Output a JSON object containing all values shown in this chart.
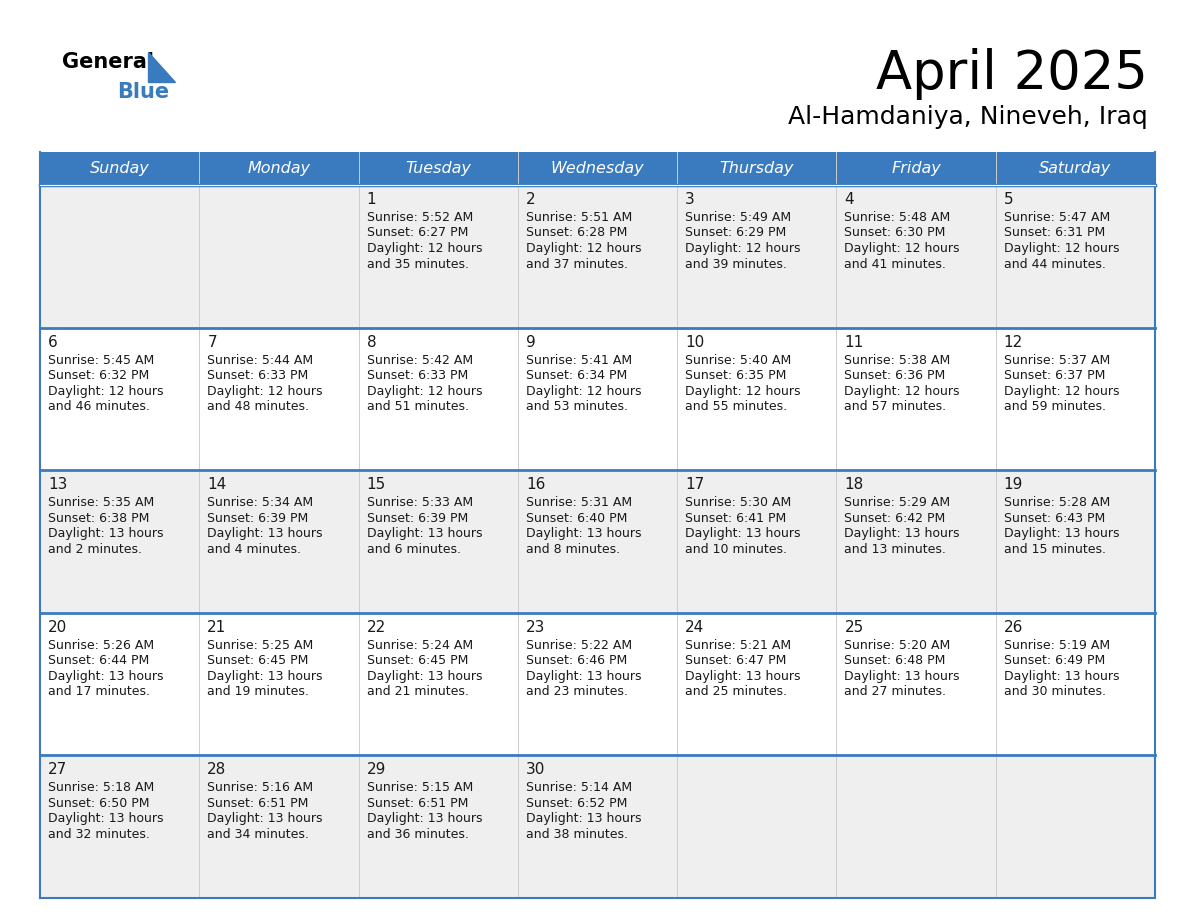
{
  "title": "April 2025",
  "subtitle": "Al-Hamdaniya, Nineveh, Iraq",
  "days_of_week": [
    "Sunday",
    "Monday",
    "Tuesday",
    "Wednesday",
    "Thursday",
    "Friday",
    "Saturday"
  ],
  "header_bg_color": "#3a7bbf",
  "header_text_color": "#ffffff",
  "row_bg_colors": [
    "#efefef",
    "#ffffff",
    "#efefef",
    "#ffffff",
    "#efefef"
  ],
  "border_color": "#3a7bbf",
  "sep_line_color": "#3a7bbf",
  "col_line_color": "#cccccc",
  "title_color": "#000000",
  "subtitle_color": "#000000",
  "day_num_color": "#1a1a1a",
  "info_text_color": "#1a1a1a",
  "calendar_data": [
    [
      null,
      null,
      {
        "day": 1,
        "sunrise": "5:52 AM",
        "sunset": "6:27 PM",
        "daylight_line1": "Daylight: 12 hours",
        "daylight_line2": "and 35 minutes."
      },
      {
        "day": 2,
        "sunrise": "5:51 AM",
        "sunset": "6:28 PM",
        "daylight_line1": "Daylight: 12 hours",
        "daylight_line2": "and 37 minutes."
      },
      {
        "day": 3,
        "sunrise": "5:49 AM",
        "sunset": "6:29 PM",
        "daylight_line1": "Daylight: 12 hours",
        "daylight_line2": "and 39 minutes."
      },
      {
        "day": 4,
        "sunrise": "5:48 AM",
        "sunset": "6:30 PM",
        "daylight_line1": "Daylight: 12 hours",
        "daylight_line2": "and 41 minutes."
      },
      {
        "day": 5,
        "sunrise": "5:47 AM",
        "sunset": "6:31 PM",
        "daylight_line1": "Daylight: 12 hours",
        "daylight_line2": "and 44 minutes."
      }
    ],
    [
      {
        "day": 6,
        "sunrise": "5:45 AM",
        "sunset": "6:32 PM",
        "daylight_line1": "Daylight: 12 hours",
        "daylight_line2": "and 46 minutes."
      },
      {
        "day": 7,
        "sunrise": "5:44 AM",
        "sunset": "6:33 PM",
        "daylight_line1": "Daylight: 12 hours",
        "daylight_line2": "and 48 minutes."
      },
      {
        "day": 8,
        "sunrise": "5:42 AM",
        "sunset": "6:33 PM",
        "daylight_line1": "Daylight: 12 hours",
        "daylight_line2": "and 51 minutes."
      },
      {
        "day": 9,
        "sunrise": "5:41 AM",
        "sunset": "6:34 PM",
        "daylight_line1": "Daylight: 12 hours",
        "daylight_line2": "and 53 minutes."
      },
      {
        "day": 10,
        "sunrise": "5:40 AM",
        "sunset": "6:35 PM",
        "daylight_line1": "Daylight: 12 hours",
        "daylight_line2": "and 55 minutes."
      },
      {
        "day": 11,
        "sunrise": "5:38 AM",
        "sunset": "6:36 PM",
        "daylight_line1": "Daylight: 12 hours",
        "daylight_line2": "and 57 minutes."
      },
      {
        "day": 12,
        "sunrise": "5:37 AM",
        "sunset": "6:37 PM",
        "daylight_line1": "Daylight: 12 hours",
        "daylight_line2": "and 59 minutes."
      }
    ],
    [
      {
        "day": 13,
        "sunrise": "5:35 AM",
        "sunset": "6:38 PM",
        "daylight_line1": "Daylight: 13 hours",
        "daylight_line2": "and 2 minutes."
      },
      {
        "day": 14,
        "sunrise": "5:34 AM",
        "sunset": "6:39 PM",
        "daylight_line1": "Daylight: 13 hours",
        "daylight_line2": "and 4 minutes."
      },
      {
        "day": 15,
        "sunrise": "5:33 AM",
        "sunset": "6:39 PM",
        "daylight_line1": "Daylight: 13 hours",
        "daylight_line2": "and 6 minutes."
      },
      {
        "day": 16,
        "sunrise": "5:31 AM",
        "sunset": "6:40 PM",
        "daylight_line1": "Daylight: 13 hours",
        "daylight_line2": "and 8 minutes."
      },
      {
        "day": 17,
        "sunrise": "5:30 AM",
        "sunset": "6:41 PM",
        "daylight_line1": "Daylight: 13 hours",
        "daylight_line2": "and 10 minutes."
      },
      {
        "day": 18,
        "sunrise": "5:29 AM",
        "sunset": "6:42 PM",
        "daylight_line1": "Daylight: 13 hours",
        "daylight_line2": "and 13 minutes."
      },
      {
        "day": 19,
        "sunrise": "5:28 AM",
        "sunset": "6:43 PM",
        "daylight_line1": "Daylight: 13 hours",
        "daylight_line2": "and 15 minutes."
      }
    ],
    [
      {
        "day": 20,
        "sunrise": "5:26 AM",
        "sunset": "6:44 PM",
        "daylight_line1": "Daylight: 13 hours",
        "daylight_line2": "and 17 minutes."
      },
      {
        "day": 21,
        "sunrise": "5:25 AM",
        "sunset": "6:45 PM",
        "daylight_line1": "Daylight: 13 hours",
        "daylight_line2": "and 19 minutes."
      },
      {
        "day": 22,
        "sunrise": "5:24 AM",
        "sunset": "6:45 PM",
        "daylight_line1": "Daylight: 13 hours",
        "daylight_line2": "and 21 minutes."
      },
      {
        "day": 23,
        "sunrise": "5:22 AM",
        "sunset": "6:46 PM",
        "daylight_line1": "Daylight: 13 hours",
        "daylight_line2": "and 23 minutes."
      },
      {
        "day": 24,
        "sunrise": "5:21 AM",
        "sunset": "6:47 PM",
        "daylight_line1": "Daylight: 13 hours",
        "daylight_line2": "and 25 minutes."
      },
      {
        "day": 25,
        "sunrise": "5:20 AM",
        "sunset": "6:48 PM",
        "daylight_line1": "Daylight: 13 hours",
        "daylight_line2": "and 27 minutes."
      },
      {
        "day": 26,
        "sunrise": "5:19 AM",
        "sunset": "6:49 PM",
        "daylight_line1": "Daylight: 13 hours",
        "daylight_line2": "and 30 minutes."
      }
    ],
    [
      {
        "day": 27,
        "sunrise": "5:18 AM",
        "sunset": "6:50 PM",
        "daylight_line1": "Daylight: 13 hours",
        "daylight_line2": "and 32 minutes."
      },
      {
        "day": 28,
        "sunrise": "5:16 AM",
        "sunset": "6:51 PM",
        "daylight_line1": "Daylight: 13 hours",
        "daylight_line2": "and 34 minutes."
      },
      {
        "day": 29,
        "sunrise": "5:15 AM",
        "sunset": "6:51 PM",
        "daylight_line1": "Daylight: 13 hours",
        "daylight_line2": "and 36 minutes."
      },
      {
        "day": 30,
        "sunrise": "5:14 AM",
        "sunset": "6:52 PM",
        "daylight_line1": "Daylight: 13 hours",
        "daylight_line2": "and 38 minutes."
      },
      null,
      null,
      null
    ]
  ]
}
